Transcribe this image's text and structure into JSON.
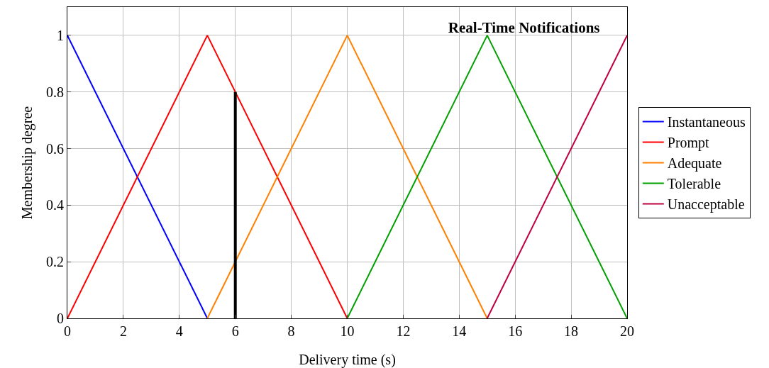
{
  "chart_data": {
    "type": "line",
    "title": "Real-Time Notifications",
    "xlabel": "Delivery time (s)",
    "ylabel": "Membership degree",
    "xlim": [
      0,
      20
    ],
    "xticks": [
      0,
      2,
      4,
      6,
      8,
      10,
      12,
      14,
      16,
      18,
      20
    ],
    "ylim": [
      0,
      1.1
    ],
    "yticks": [
      0,
      0.2,
      0.4,
      0.6,
      0.8,
      1
    ],
    "grid": true,
    "legend": "right",
    "marker": "none",
    "line_style": "solid",
    "series": [
      {
        "name": "Instantaneous",
        "color": "#0000ff",
        "x": [
          0,
          5
        ],
        "values": [
          1,
          0
        ]
      },
      {
        "name": "Prompt",
        "color": "#ff0000",
        "x": [
          0,
          5,
          10
        ],
        "values": [
          0,
          1,
          0
        ]
      },
      {
        "name": "Adequate",
        "color": "#ff8000",
        "x": [
          5,
          10,
          15
        ],
        "values": [
          0,
          1,
          0
        ]
      },
      {
        "name": "Tolerable",
        "color": "#00a000",
        "x": [
          10,
          15,
          20
        ],
        "values": [
          0,
          1,
          0
        ]
      },
      {
        "name": "Unacceptable",
        "color": "#bf0040",
        "x": [
          15,
          20
        ],
        "values": [
          0,
          1
        ]
      },
      {
        "color": "#000000",
        "x": [
          6,
          6
        ],
        "values": [
          0,
          0.8
        ]
      }
    ]
  }
}
